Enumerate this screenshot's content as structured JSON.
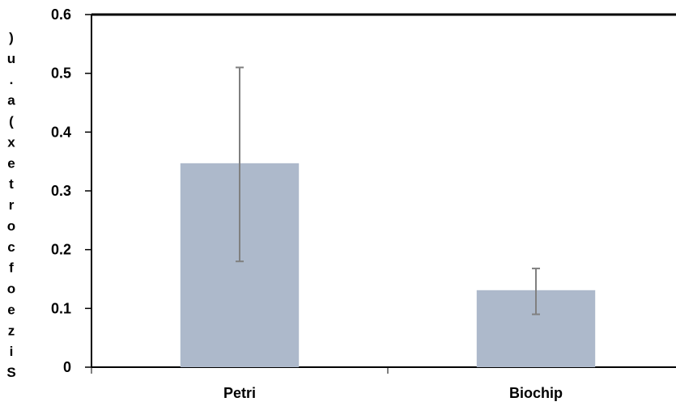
{
  "chart_data": {
    "type": "bar",
    "categories": [
      "Petri",
      "Biochip"
    ],
    "series": [
      {
        "values": [
          0.347,
          0.131
        ],
        "error_low": [
          0.18,
          0.09
        ],
        "error_high": [
          0.51,
          0.168
        ]
      }
    ],
    "ylabel": "Size of cortex (a.u)",
    "ylim": [
      0,
      0.6
    ],
    "yticks": [
      "0",
      "0.1",
      "0.2",
      "0.3",
      "0.4",
      "0.5",
      "0.6"
    ],
    "grid": false,
    "colors": {
      "bar": "#adb9cb",
      "error_bar": "#808080",
      "axis": "#000000",
      "text": "#000000"
    }
  }
}
